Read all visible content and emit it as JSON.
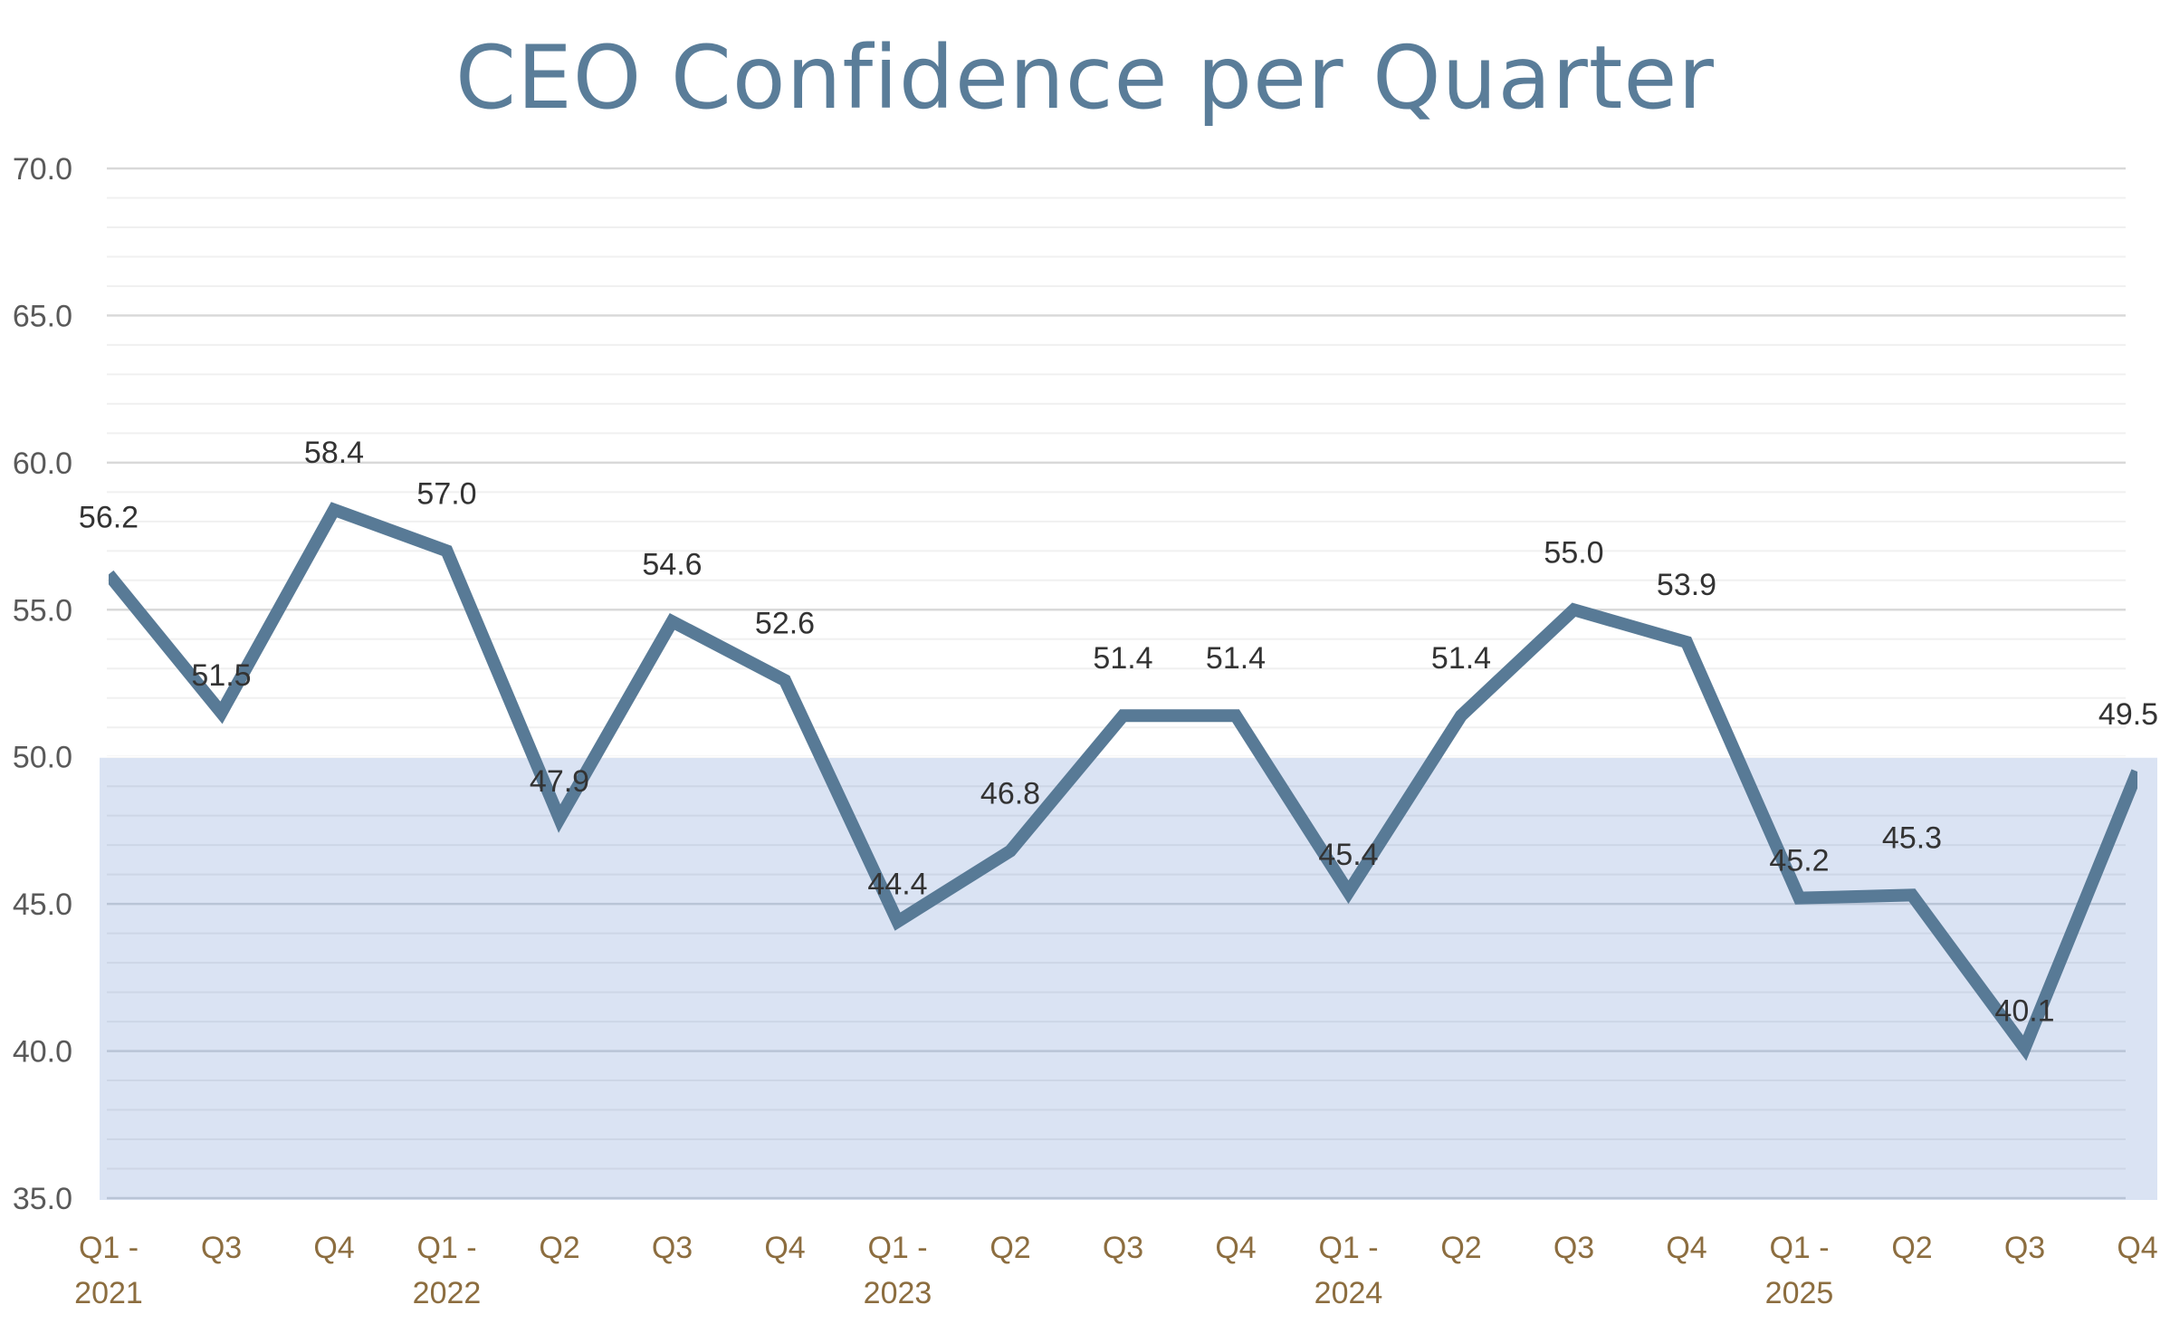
{
  "chart_data": {
    "type": "line",
    "title": "CEO Confidence per Quarter",
    "xlabel": "",
    "ylabel": "",
    "ylim": [
      35.0,
      70.0
    ],
    "yticks": [
      "35.0",
      "40.0",
      "45.0",
      "50.0",
      "55.0",
      "60.0",
      "65.0",
      "70.0"
    ],
    "grid": true,
    "legend": "none",
    "categories": [
      [
        "Q1 -",
        "2021"
      ],
      [
        "Q3"
      ],
      [
        "Q4"
      ],
      [
        "Q1 -",
        "2022"
      ],
      [
        "Q2"
      ],
      [
        "Q3"
      ],
      [
        "Q4"
      ],
      [
        "Q1 -",
        "2023"
      ],
      [
        "Q2"
      ],
      [
        "Q3"
      ],
      [
        "Q4"
      ],
      [
        "Q1 -",
        "2024"
      ],
      [
        "Q2"
      ],
      [
        "Q3"
      ],
      [
        "Q4"
      ],
      [
        "Q1 -",
        "2025"
      ],
      [
        "Q2"
      ],
      [
        "Q3"
      ],
      [
        "Q4"
      ]
    ],
    "series": [
      {
        "values": [
          56.2,
          51.5,
          58.4,
          57.0,
          47.9,
          54.6,
          52.6,
          44.4,
          46.8,
          51.4,
          51.4,
          45.4,
          51.4,
          55.0,
          53.9,
          45.2,
          45.3,
          40.1,
          49.5
        ],
        "labels": [
          "56.2",
          "51.5",
          "58.4",
          "57.0",
          "47.9",
          "54.6",
          "52.6",
          "44.4",
          "46.8",
          "51.4",
          "51.4",
          "45.4",
          "51.4",
          "55.0",
          "53.9",
          "45.2",
          "45.3",
          "40.1",
          "49.5"
        ]
      }
    ],
    "shaded_band": {
      "from": 35.0,
      "to": 50.0,
      "color": "#dae3f3"
    },
    "colors": {
      "line": "#587a96",
      "title": "#5a7d99",
      "grid_major": "#d9d9d9",
      "grid_minor": "#f0f0f0",
      "xtick": "#8c6d3f",
      "ytick": "#595959"
    }
  }
}
